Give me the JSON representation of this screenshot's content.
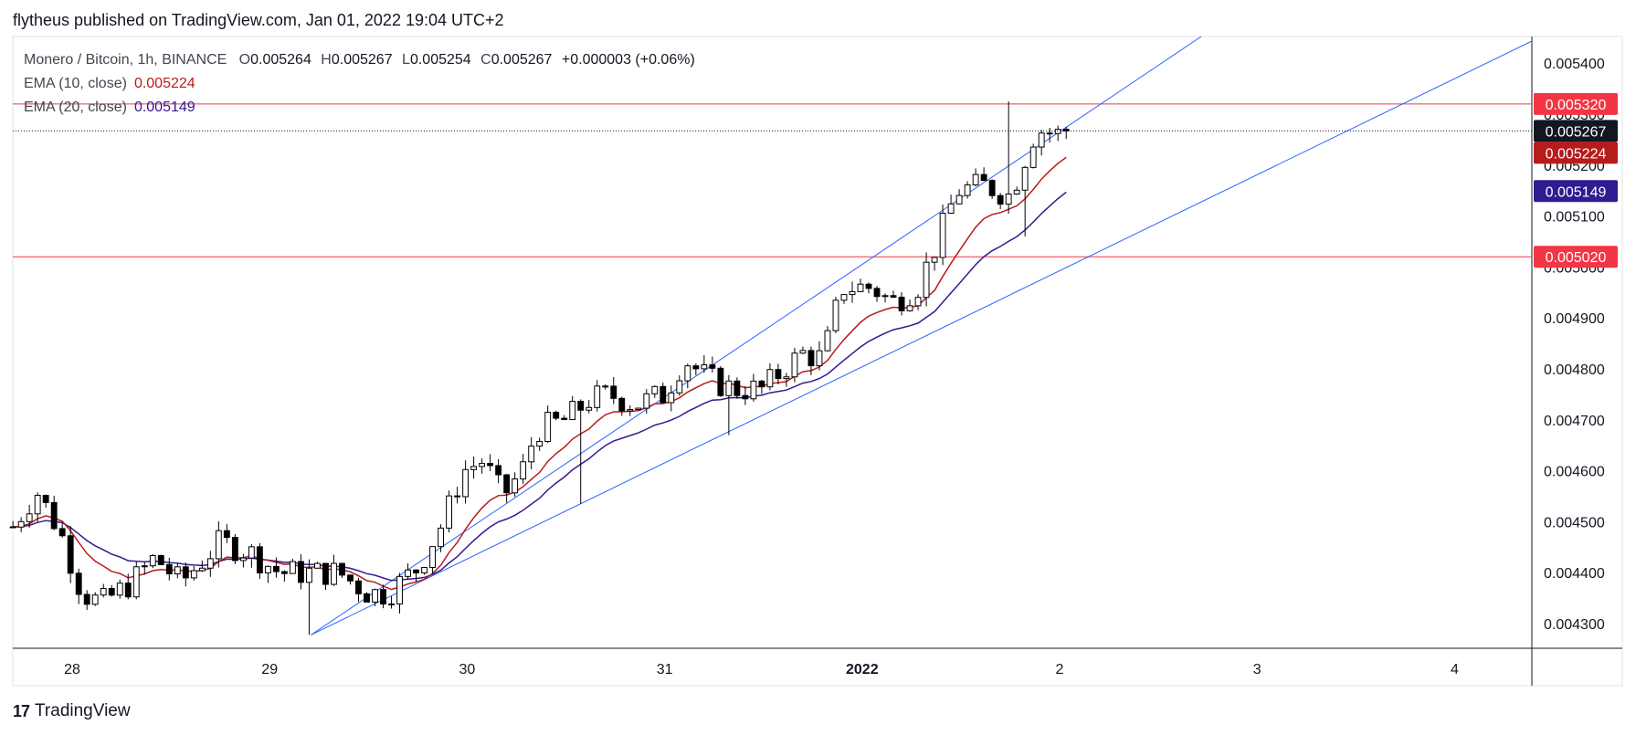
{
  "header": {
    "published_text": "flytheus published on TradingView.com, Jan 01, 2022 19:04 UTC+2"
  },
  "legend": {
    "symbol": "Monero / Bitcoin, 1h, BINANCE",
    "open_label": "O",
    "open": "0.005264",
    "high_label": "H",
    "high": "0.005267",
    "low_label": "L",
    "low": "0.005254",
    "close_label": "C",
    "close": "0.005267",
    "change": "+0.000003 (+0.06%)",
    "ema10_label": "EMA (10, close)",
    "ema10_value": "0.005224",
    "ema20_label": "EMA (20, close)",
    "ema20_value": "0.005149"
  },
  "footer": {
    "brand": "TradingView",
    "brand_mark": "17"
  },
  "colors": {
    "bullish": "#ffffff",
    "bearish": "#000000",
    "wick": "#000000",
    "ema10": "#b71c1c",
    "ema20": "#311b92",
    "horizontal": "#f23645",
    "trendline": "#2962ff",
    "price_line": "#131722"
  },
  "chart_data": {
    "type": "candlestick",
    "title": "Monero / Bitcoin, 1h, BINANCE",
    "xlabel": "",
    "ylabel": "",
    "x_tick_labels": [
      "28",
      "29",
      "30",
      "31",
      "2022",
      "2",
      "3",
      "4"
    ],
    "y_tick_labels": [
      "0.004300",
      "0.004400",
      "0.004500",
      "0.004600",
      "0.004700",
      "0.004800",
      "0.004900",
      "0.005000",
      "0.005100",
      "0.005200",
      "0.005300",
      "0.005400"
    ],
    "ylim": [
      0.00426,
      0.005445
    ],
    "x_unit": "days since Dec 28 00:00 (1h bars)",
    "xlim": [
      -0.3,
      7.4
    ],
    "grid": false,
    "price_labels": [
      {
        "name": "resistance",
        "value": "0.005320",
        "color": "#f23645"
      },
      {
        "name": "last-price",
        "value": "0.005267",
        "color": "#131722"
      },
      {
        "name": "ema10",
        "value": "0.005224",
        "color": "#b71c1c"
      },
      {
        "name": "ema20",
        "value": "0.005149",
        "color": "#311b92"
      },
      {
        "name": "support",
        "value": "0.005020",
        "color": "#f23645"
      }
    ],
    "horizontal_lines": [
      0.00532,
      0.00502
    ],
    "last_price": 0.005267,
    "trendlines": [
      {
        "x1": 1.21,
        "y1": 0.004278,
        "x2": 6.13,
        "y2": 0.00556
      },
      {
        "x1": 1.21,
        "y1": 0.004278,
        "x2": 7.4,
        "y2": 0.005445
      }
    ],
    "series": [
      {
        "name": "Monero / Bitcoin",
        "kind": "ohlc",
        "knots": [
          {
            "x": -0.3,
            "p": 0.00449
          },
          {
            "x": -0.18,
            "p": 0.00456
          },
          {
            "x": -0.06,
            "p": 0.00448
          },
          {
            "x": 0.05,
            "p": 0.00436
          },
          {
            "x": 0.15,
            "p": 0.00434
          },
          {
            "x": 0.3,
            "p": 0.00438
          },
          {
            "x": 0.42,
            "p": 0.00443
          },
          {
            "x": 0.55,
            "p": 0.00438
          },
          {
            "x": 0.65,
            "p": 0.00442
          },
          {
            "x": 0.75,
            "p": 0.00446
          },
          {
            "x": 0.9,
            "p": 0.00444
          },
          {
            "x": 1.05,
            "p": 0.0044
          },
          {
            "x": 1.2,
            "p": 0.0044
          },
          {
            "x": 1.35,
            "p": 0.0044
          },
          {
            "x": 1.5,
            "p": 0.00436
          },
          {
            "x": 1.6,
            "p": 0.00436
          },
          {
            "x": 1.75,
            "p": 0.00441
          },
          {
            "x": 1.88,
            "p": 0.0045
          },
          {
            "x": 1.98,
            "p": 0.0046
          },
          {
            "x": 2.08,
            "p": 0.00462
          },
          {
            "x": 2.18,
            "p": 0.00455
          },
          {
            "x": 2.28,
            "p": 0.0046
          },
          {
            "x": 2.35,
            "p": 0.00468
          },
          {
            "x": 2.5,
            "p": 0.0047
          },
          {
            "x": 2.62,
            "p": 0.00474
          },
          {
            "x": 2.72,
            "p": 0.00475
          },
          {
            "x": 2.85,
            "p": 0.00473
          },
          {
            "x": 3.0,
            "p": 0.00475
          },
          {
            "x": 3.1,
            "p": 0.00482
          },
          {
            "x": 3.22,
            "p": 0.00478
          },
          {
            "x": 3.35,
            "p": 0.00476
          },
          {
            "x": 3.5,
            "p": 0.00476
          },
          {
            "x": 3.6,
            "p": 0.0048
          },
          {
            "x": 3.7,
            "p": 0.00483
          },
          {
            "x": 3.8,
            "p": 0.00482
          },
          {
            "x": 3.9,
            "p": 0.00496
          },
          {
            "x": 4.05,
            "p": 0.00496
          },
          {
            "x": 4.15,
            "p": 0.00493
          },
          {
            "x": 4.28,
            "p": 0.00496
          },
          {
            "x": 4.37,
            "p": 0.00504
          },
          {
            "x": 4.48,
            "p": 0.00515
          },
          {
            "x": 4.62,
            "p": 0.00516
          },
          {
            "x": 4.75,
            "p": 0.00514
          },
          {
            "x": 4.88,
            "p": 0.00527
          },
          {
            "x": 5.0,
            "p": 0.00526
          },
          {
            "x": 5.05,
            "p": 0.005267
          }
        ]
      },
      {
        "name": "EMA (10, close)",
        "color": "#b71c1c",
        "period": 10
      },
      {
        "name": "EMA (20, close)",
        "color": "#311b92",
        "period": 20
      }
    ]
  }
}
